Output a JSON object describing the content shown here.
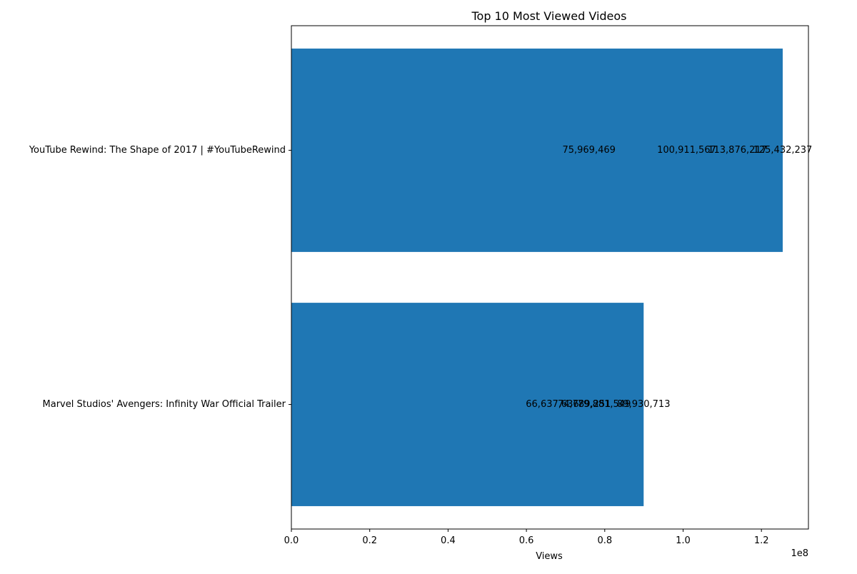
{
  "chart_data": {
    "type": "bar",
    "orientation": "horizontal",
    "title": "Top 10 Most Viewed Videos",
    "xlabel": "Views",
    "ylabel": "",
    "x_multiplier_label": "1e8",
    "xlim": [
      0,
      132000000
    ],
    "x_ticks": [
      0,
      20000000,
      40000000,
      60000000,
      80000000,
      100000000,
      120000000
    ],
    "x_tick_labels": [
      "0.0",
      "0.2",
      "0.4",
      "0.6",
      "0.8",
      "1.0",
      "1.2"
    ],
    "grid": false,
    "legend": "none",
    "bar_color": "#1f77b4",
    "categories": [
      "Marvel Studios' Avengers: Infinity War Official Trailer",
      "YouTube Rewind: The Shape of 2017 | #YouTubeRewind"
    ],
    "values": [
      89930713,
      125432237
    ],
    "annotations": [
      {
        "category_index": 1,
        "value": 75969469,
        "text": "75,969,469"
      },
      {
        "category_index": 1,
        "value": 100911567,
        "text": "100,911,567"
      },
      {
        "category_index": 1,
        "value": 113876217,
        "text": "113,876,217"
      },
      {
        "category_index": 1,
        "value": 125432237,
        "text": "125,432,237"
      },
      {
        "category_index": 0,
        "value": 66637636,
        "text": "66,637,636"
      },
      {
        "category_index": 0,
        "value": 74789251,
        "text": "74,789,251"
      },
      {
        "category_index": 0,
        "value": 79881549,
        "text": "79,881,549"
      },
      {
        "category_index": 0,
        "value": 89930713,
        "text": "89,930,713"
      }
    ]
  }
}
